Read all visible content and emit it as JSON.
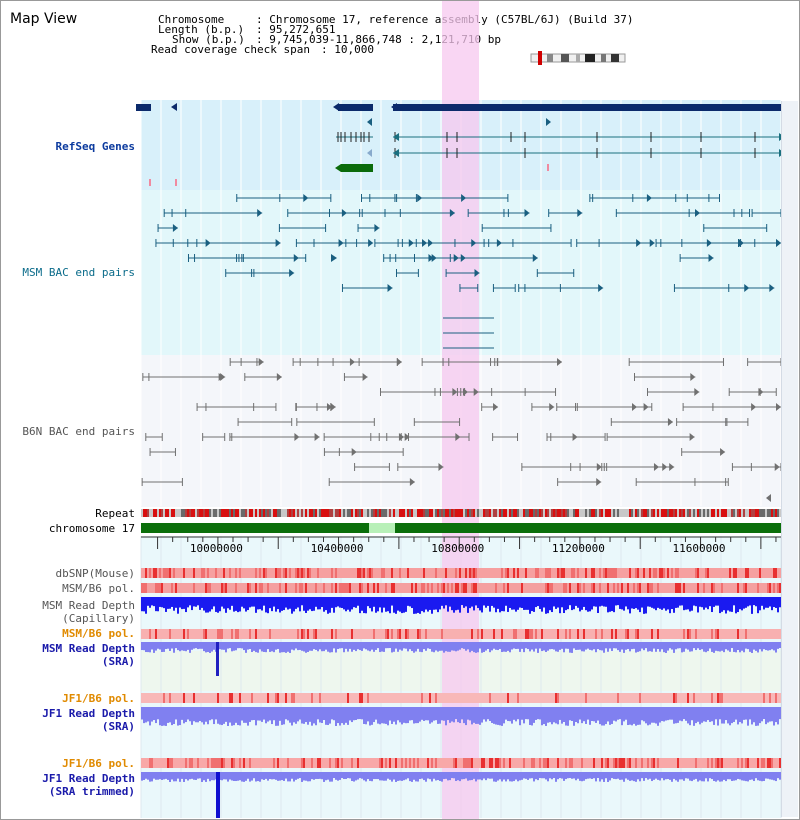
{
  "view": {
    "title": "Map View"
  },
  "info": {
    "chromosome_key": "Chromosome",
    "chromosome_val": ": Chromosome 17, reference assembly (C57BL/6J) (Build 37)",
    "length_key": "Length (b.p.)",
    "length_val": ": 95,272,651",
    "show_key": "Show (b.p.)",
    "show_val": ": 9,745,039-11,866,748 : 2,121,710 bp",
    "coverage_key": "Read coverage check span",
    "coverage_val": ": 10,000"
  },
  "tracks": {
    "refseq": "RefSeq Genes",
    "msm_bac": "MSM BAC end pairs",
    "b6n_bac": "B6N BAC end pairs",
    "repeat": "Repeat",
    "chromosome": "chromosome 17",
    "dbsnp": "dbSNP(Mouse)",
    "msm_b6_pol_1": "MSM/B6 pol.",
    "msm_read_depth_cap": "MSM Read Depth\n(Capillary)",
    "msm_b6_pol_2": "MSM/B6 pol.",
    "msm_read_depth_sra": "MSM Read Depth\n(SRA)",
    "jf1_b6_pol_1": "JF1/B6 pol.",
    "jf1_read_depth_sra": "JF1 Read Depth\n(SRA)",
    "jf1_b6_pol_2": "JF1/B6 pol.",
    "jf1_read_depth_trim": "JF1 Read Depth\n(SRA trimmed)"
  },
  "axis": {
    "ticks": [
      {
        "bp": 10000000,
        "label": "10000000"
      },
      {
        "bp": 10400000,
        "label": "10400000"
      },
      {
        "bp": 10800000,
        "label": "10800000"
      },
      {
        "bp": 11200000,
        "label": "11200000"
      },
      {
        "bp": 11600000,
        "label": "11600000"
      }
    ]
  },
  "colors": {
    "refseq_bg": "#d8f0fa",
    "msm_bg": "#e2f7fa",
    "b6n_bg": "#f4f6fa",
    "highlight": "#f7c8ef",
    "gene_dark": "#0b2a6b",
    "gene_line": "#1a6f7f",
    "gene_green": "#0b6b0b",
    "msm_pair": "#1a5f80",
    "b6n_pair": "#707070",
    "chrom_green": "#0b6f0b",
    "depth_blue": "#1a1af0",
    "depth_light": "#8080f0"
  }
}
